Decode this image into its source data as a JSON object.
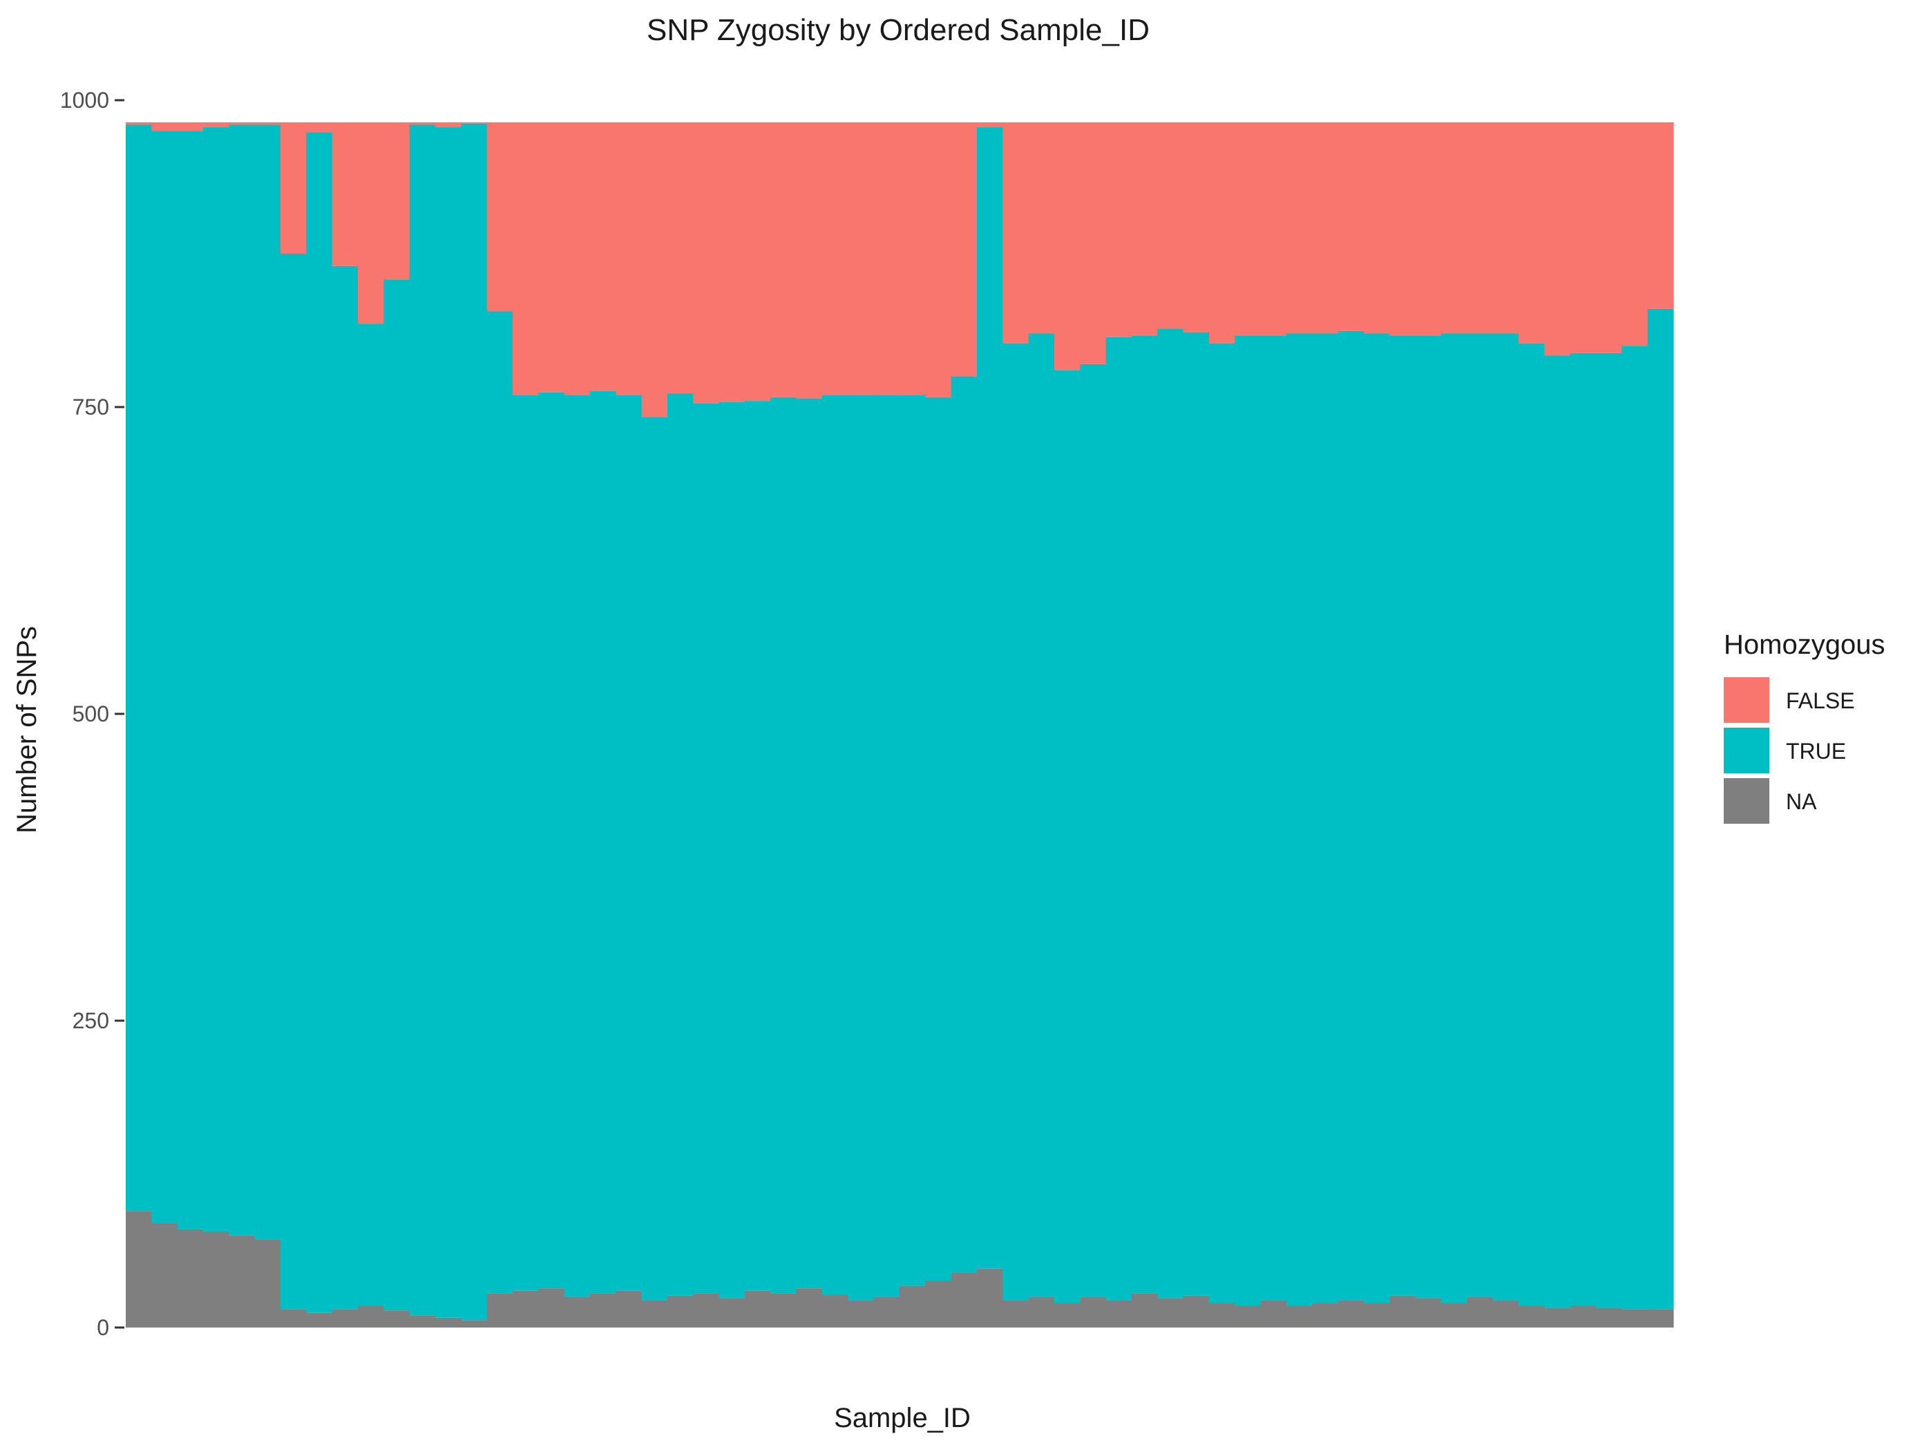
{
  "chart_data": {
    "type": "bar",
    "stacked": true,
    "title": "SNP Zygosity by Ordered Sample_ID",
    "xlabel": "Sample_ID",
    "ylabel": "Number of SNPs",
    "ylim": [
      0,
      1000
    ],
    "yticks": [
      0,
      250,
      500,
      750,
      1000
    ],
    "x_tick_labels_visible": false,
    "n_samples": 60,
    "total_per_sample": 982,
    "legend": {
      "title": "Homozygous",
      "position": "right",
      "entries": [
        "FALSE",
        "TRUE",
        "NA"
      ]
    },
    "colors": {
      "FALSE": "#F8766D",
      "TRUE": "#00BFC4",
      "NA": "#7F7F7F"
    },
    "series": [
      {
        "name": "NA",
        "values": [
          95,
          85,
          80,
          78,
          75,
          72,
          15,
          12,
          15,
          18,
          14,
          10,
          8,
          6,
          28,
          30,
          32,
          25,
          28,
          30,
          22,
          26,
          28,
          24,
          30,
          28,
          32,
          27,
          22,
          25,
          34,
          38,
          45,
          48,
          22,
          25,
          20,
          25,
          22,
          28,
          24,
          26,
          20,
          18,
          22,
          18,
          20,
          22,
          20,
          26,
          24,
          20,
          25,
          22,
          18,
          16,
          18,
          16,
          15,
          15
        ]
      },
      {
        "name": "TRUE",
        "values": [
          885,
          890,
          895,
          900,
          905,
          908,
          860,
          962,
          850,
          800,
          840,
          970,
          970,
          975,
          800,
          730,
          730,
          735,
          735,
          730,
          720,
          735,
          725,
          730,
          725,
          730,
          725,
          733,
          738,
          735,
          726,
          720,
          730,
          930,
          780,
          785,
          760,
          760,
          785,
          780,
          790,
          785,
          782,
          790,
          786,
          792,
          790,
          790,
          790,
          782,
          784,
          790,
          785,
          788,
          784,
          776,
          776,
          778,
          785,
          815
        ]
      }
    ]
  }
}
